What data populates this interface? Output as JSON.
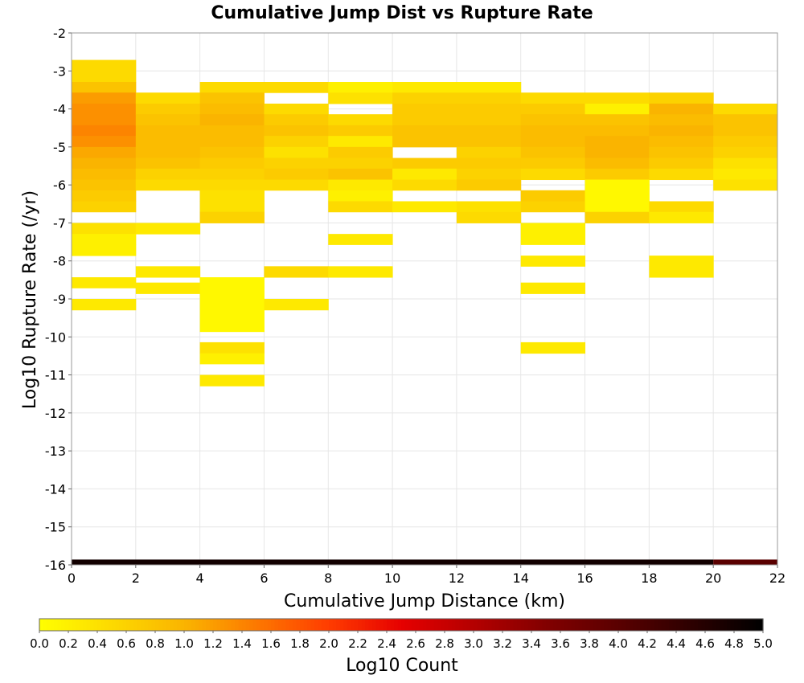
{
  "chart_data": {
    "type": "heatmap",
    "title": "Cumulative Jump Dist vs Rupture Rate",
    "xlabel": "Cumulative Jump Distance (km)",
    "ylabel": "Log10 Rupture Rate (/yr)",
    "colorbar_label": "Log10 Count",
    "xlim": [
      0,
      22
    ],
    "ylim": [
      -16,
      -2
    ],
    "x_ticks": [
      "0",
      "2",
      "4",
      "6",
      "8",
      "10",
      "12",
      "14",
      "16",
      "18",
      "20",
      "22"
    ],
    "y_ticks": [
      "-2",
      "-3",
      "-4",
      "-5",
      "-6",
      "-7",
      "-8",
      "-9",
      "-10",
      "-11",
      "-12",
      "-13",
      "-14",
      "-15",
      "-16"
    ],
    "colorbar_ticks": [
      "0.0",
      "0.2",
      "0.4",
      "0.6",
      "0.8",
      "1.0",
      "1.2",
      "1.4",
      "1.6",
      "1.8",
      "2.0",
      "2.2",
      "2.4",
      "2.6",
      "2.8",
      "3.0",
      "3.2",
      "3.4",
      "3.6",
      "3.8",
      "4.0",
      "4.2",
      "4.4",
      "4.6",
      "4.8",
      "5.0"
    ],
    "colorbar_range": [
      0,
      5
    ],
    "grid": true,
    "x_bin_width": 2,
    "y_bin_height": 0.285714,
    "columns": [
      {
        "x": [
          0,
          2
        ],
        "cells": [
          [
            -3.29,
            -2.71,
            0.5
          ],
          [
            -3.57,
            -3.29,
            0.8
          ],
          [
            -3.86,
            -3.57,
            1.2
          ],
          [
            -4.14,
            -3.86,
            1.3
          ],
          [
            -4.43,
            -4.14,
            1.3
          ],
          [
            -4.71,
            -4.43,
            1.4
          ],
          [
            -5.0,
            -4.71,
            1.3
          ],
          [
            -5.29,
            -5.0,
            1.1
          ],
          [
            -5.57,
            -5.29,
            1.0
          ],
          [
            -5.86,
            -5.57,
            0.9
          ],
          [
            -6.14,
            -5.86,
            0.8
          ],
          [
            -6.43,
            -6.14,
            0.7
          ],
          [
            -6.71,
            -6.43,
            0.6
          ],
          [
            -7.29,
            -7.0,
            0.4
          ],
          [
            -7.57,
            -7.29,
            0.2
          ],
          [
            -7.86,
            -7.57,
            0.2
          ],
          [
            -8.71,
            -8.43,
            0.3
          ],
          [
            -9.29,
            -9.0,
            0.3
          ]
        ]
      },
      {
        "x": [
          2,
          4
        ],
        "cells": [
          [
            -3.86,
            -3.57,
            0.5
          ],
          [
            -4.14,
            -3.86,
            0.7
          ],
          [
            -4.43,
            -4.14,
            0.8
          ],
          [
            -4.71,
            -4.43,
            0.9
          ],
          [
            -5.0,
            -4.71,
            0.9
          ],
          [
            -5.29,
            -5.0,
            0.9
          ],
          [
            -5.57,
            -5.29,
            0.8
          ],
          [
            -5.86,
            -5.57,
            0.6
          ],
          [
            -6.14,
            -5.86,
            0.5
          ],
          [
            -7.29,
            -7.0,
            0.3
          ],
          [
            -8.43,
            -8.14,
            0.3
          ],
          [
            -8.86,
            -8.57,
            0.3
          ]
        ]
      },
      {
        "x": [
          4,
          6
        ],
        "cells": [
          [
            -3.57,
            -3.29,
            0.5
          ],
          [
            -3.86,
            -3.57,
            0.8
          ],
          [
            -4.14,
            -3.86,
            0.9
          ],
          [
            -4.43,
            -4.14,
            1.0
          ],
          [
            -4.71,
            -4.43,
            0.9
          ],
          [
            -5.0,
            -4.71,
            0.9
          ],
          [
            -5.29,
            -5.0,
            0.8
          ],
          [
            -5.57,
            -5.29,
            0.7
          ],
          [
            -5.86,
            -5.57,
            0.6
          ],
          [
            -6.14,
            -5.86,
            0.5
          ],
          [
            -6.43,
            -6.14,
            0.4
          ],
          [
            -6.71,
            -6.43,
            0.4
          ],
          [
            -7.0,
            -6.71,
            0.6
          ],
          [
            -9.86,
            -8.43,
            0.1
          ],
          [
            -10.43,
            -10.14,
            0.4
          ],
          [
            -10.71,
            -10.43,
            0.2
          ],
          [
            -11.29,
            -11.0,
            0.3
          ]
        ]
      },
      {
        "x": [
          6,
          8
        ],
        "cells": [
          [
            -3.57,
            -3.29,
            0.5
          ],
          [
            -4.14,
            -3.86,
            0.5
          ],
          [
            -4.43,
            -4.14,
            0.7
          ],
          [
            -4.71,
            -4.43,
            0.8
          ],
          [
            -5.0,
            -4.71,
            0.6
          ],
          [
            -5.29,
            -5.0,
            0.4
          ],
          [
            -5.57,
            -5.29,
            0.6
          ],
          [
            -5.86,
            -5.57,
            0.7
          ],
          [
            -6.14,
            -5.86,
            0.5
          ],
          [
            -8.43,
            -8.14,
            0.5
          ],
          [
            -9.29,
            -9.0,
            0.3
          ]
        ]
      },
      {
        "x": [
          8,
          10
        ],
        "cells": [
          [
            -3.57,
            -3.29,
            0.2
          ],
          [
            -3.86,
            -3.57,
            0.4
          ],
          [
            -4.43,
            -4.14,
            0.5
          ],
          [
            -4.71,
            -4.43,
            0.7
          ],
          [
            -5.0,
            -4.71,
            0.3
          ],
          [
            -5.29,
            -5.0,
            0.7
          ],
          [
            -5.57,
            -5.29,
            0.6
          ],
          [
            -5.86,
            -5.57,
            0.8
          ],
          [
            -6.14,
            -5.86,
            0.3
          ],
          [
            -6.43,
            -6.14,
            0.2
          ],
          [
            -6.71,
            -6.43,
            0.5
          ],
          [
            -7.57,
            -7.29,
            0.3
          ],
          [
            -8.43,
            -8.14,
            0.3
          ]
        ]
      },
      {
        "x": [
          10,
          12
        ],
        "cells": [
          [
            -3.57,
            -3.29,
            0.3
          ],
          [
            -3.86,
            -3.57,
            0.6
          ],
          [
            -4.14,
            -3.86,
            0.7
          ],
          [
            -4.43,
            -4.14,
            0.7
          ],
          [
            -4.71,
            -4.43,
            0.8
          ],
          [
            -5.0,
            -4.71,
            0.8
          ],
          [
            -5.57,
            -5.29,
            0.7
          ],
          [
            -5.86,
            -5.57,
            0.3
          ],
          [
            -6.14,
            -5.86,
            0.5
          ],
          [
            -6.71,
            -6.43,
            0.3
          ]
        ]
      },
      {
        "x": [
          12,
          14
        ],
        "cells": [
          [
            -3.57,
            -3.29,
            0.3
          ],
          [
            -3.86,
            -3.57,
            0.6
          ],
          [
            -4.14,
            -3.86,
            0.7
          ],
          [
            -4.43,
            -4.14,
            0.7
          ],
          [
            -4.71,
            -4.43,
            0.8
          ],
          [
            -5.0,
            -4.71,
            0.8
          ],
          [
            -5.29,
            -5.0,
            0.6
          ],
          [
            -5.57,
            -5.29,
            0.7
          ],
          [
            -5.86,
            -5.57,
            0.6
          ],
          [
            -6.14,
            -5.86,
            0.7
          ],
          [
            -6.71,
            -6.43,
            0.4
          ],
          [
            -7.0,
            -6.71,
            0.5
          ]
        ]
      },
      {
        "x": [
          14,
          16
        ],
        "cells": [
          [
            -3.86,
            -3.57,
            0.5
          ],
          [
            -4.14,
            -3.86,
            0.7
          ],
          [
            -4.43,
            -4.14,
            0.8
          ],
          [
            -4.71,
            -4.43,
            0.9
          ],
          [
            -5.0,
            -4.71,
            0.9
          ],
          [
            -5.29,
            -5.0,
            0.8
          ],
          [
            -5.57,
            -5.29,
            0.7
          ],
          [
            -5.86,
            -5.57,
            0.5
          ],
          [
            -6.43,
            -6.14,
            0.7
          ],
          [
            -6.71,
            -6.43,
            0.6
          ],
          [
            -7.57,
            -7.0,
            0.2
          ],
          [
            -8.14,
            -7.86,
            0.3
          ],
          [
            -8.86,
            -8.57,
            0.3
          ],
          [
            -10.43,
            -10.14,
            0.3
          ]
        ]
      },
      {
        "x": [
          16,
          18
        ],
        "cells": [
          [
            -3.86,
            -3.57,
            0.5
          ],
          [
            -4.14,
            -3.86,
            0.2
          ],
          [
            -4.43,
            -4.14,
            0.8
          ],
          [
            -4.71,
            -4.43,
            0.9
          ],
          [
            -5.0,
            -4.71,
            1.0
          ],
          [
            -5.29,
            -5.0,
            1.0
          ],
          [
            -5.57,
            -5.29,
            0.9
          ],
          [
            -5.86,
            -5.57,
            0.7
          ],
          [
            -6.71,
            -5.86,
            0.1
          ],
          [
            -7.0,
            -6.71,
            0.6
          ]
        ]
      },
      {
        "x": [
          18,
          20
        ],
        "cells": [
          [
            -3.86,
            -3.57,
            0.6
          ],
          [
            -4.14,
            -3.86,
            1.0
          ],
          [
            -4.43,
            -4.14,
            0.9
          ],
          [
            -4.71,
            -4.43,
            1.0
          ],
          [
            -5.0,
            -4.71,
            0.9
          ],
          [
            -5.29,
            -5.0,
            0.8
          ],
          [
            -5.57,
            -5.29,
            0.7
          ],
          [
            -5.86,
            -5.57,
            0.5
          ],
          [
            -6.71,
            -6.43,
            0.5
          ],
          [
            -7.0,
            -6.71,
            0.3
          ],
          [
            -8.43,
            -7.86,
            0.3
          ]
        ]
      },
      {
        "x": [
          20,
          22
        ],
        "cells": [
          [
            -4.14,
            -3.86,
            0.5
          ],
          [
            -4.43,
            -4.14,
            0.8
          ],
          [
            -4.71,
            -4.43,
            0.8
          ],
          [
            -5.0,
            -4.71,
            0.7
          ],
          [
            -5.29,
            -5.0,
            0.6
          ],
          [
            -5.57,
            -5.29,
            0.4
          ],
          [
            -5.86,
            -5.57,
            0.3
          ],
          [
            -6.14,
            -5.86,
            0.4
          ]
        ]
      }
    ],
    "bottom_band": {
      "y": [
        -16.0,
        -15.86
      ],
      "segments": [
        {
          "x": [
            0,
            20
          ],
          "value": 4.8
        },
        {
          "x": [
            20,
            22
          ],
          "value": 4.0
        }
      ]
    }
  }
}
